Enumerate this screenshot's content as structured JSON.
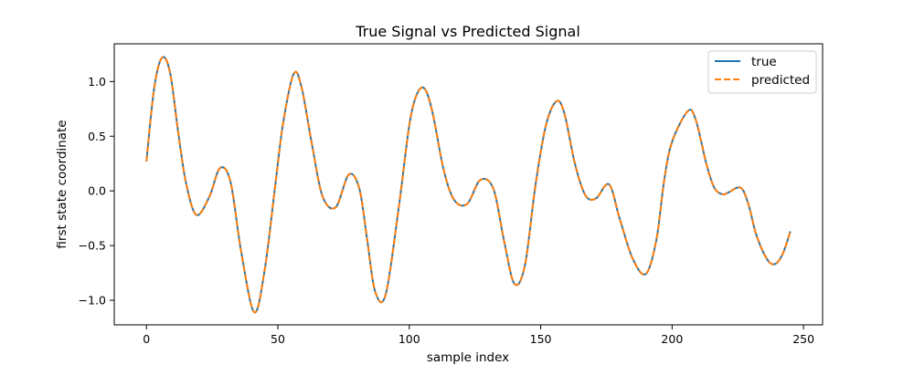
{
  "chart_data": {
    "type": "line",
    "title": "True Signal vs Predicted Signal",
    "xlabel": "sample index",
    "ylabel": "first state coordinate",
    "xlim": [
      -12.25,
      257.25
    ],
    "ylim": [
      -1.225,
      1.345
    ],
    "x_ticks": [
      0,
      50,
      100,
      150,
      200,
      250
    ],
    "y_ticks": [
      -1.0,
      -0.5,
      0.0,
      0.5,
      1.0
    ],
    "x_tick_labels": [
      "0",
      "50",
      "100",
      "150",
      "200",
      "250"
    ],
    "y_tick_labels": [
      "−1.0",
      "−0.5",
      "0.0",
      "0.5",
      "1.0"
    ],
    "grid": false,
    "legend_position": "top-right",
    "series": [
      {
        "name": "true",
        "color": "#1f77b4",
        "style": "solid",
        "x": [
          0,
          3,
          6,
          9,
          12,
          15,
          19,
          24,
          28,
          32,
          36,
          41,
          45,
          49,
          52,
          56,
          59,
          63,
          67,
          72,
          77,
          81,
          84,
          87,
          91,
          96,
          100,
          103,
          106,
          109,
          113,
          117,
          122,
          127,
          132,
          136,
          140,
          144,
          148,
          152,
          156,
          159,
          163,
          167,
          171,
          176,
          180,
          185,
          190,
          194,
          197,
          200,
          206,
          209,
          213,
          216,
          219,
          221,
          226,
          229,
          232,
          236,
          239,
          242,
          245
        ],
        "y": [
          0.27,
          0.95,
          1.22,
          1.08,
          0.55,
          0.08,
          -0.22,
          -0.05,
          0.21,
          0.08,
          -0.55,
          -1.11,
          -0.72,
          0.05,
          0.62,
          1.07,
          0.95,
          0.42,
          -0.05,
          -0.15,
          0.15,
          0.02,
          -0.45,
          -0.92,
          -0.95,
          -0.15,
          0.6,
          0.89,
          0.93,
          0.7,
          0.2,
          -0.08,
          -0.12,
          0.1,
          0.02,
          -0.45,
          -0.85,
          -0.68,
          0.05,
          0.6,
          0.82,
          0.71,
          0.25,
          -0.04,
          -0.07,
          0.06,
          -0.25,
          -0.62,
          -0.76,
          -0.45,
          0.1,
          0.45,
          0.73,
          0.65,
          0.25,
          0.03,
          -0.03,
          -0.02,
          0.03,
          -0.12,
          -0.4,
          -0.62,
          -0.67,
          -0.58,
          -0.37
        ]
      },
      {
        "name": "predicted",
        "color": "#ff7f0e",
        "style": "dashed",
        "x": [
          0,
          3,
          6,
          9,
          12,
          15,
          19,
          24,
          28,
          32,
          36,
          41,
          45,
          49,
          52,
          56,
          59,
          63,
          67,
          72,
          77,
          81,
          84,
          87,
          91,
          96,
          100,
          103,
          106,
          109,
          113,
          117,
          122,
          127,
          132,
          136,
          140,
          144,
          148,
          152,
          156,
          159,
          163,
          167,
          171,
          176,
          180,
          185,
          190,
          194,
          197,
          200,
          206,
          209,
          213,
          216,
          219,
          221,
          226,
          229,
          232,
          236,
          239,
          242,
          245
        ],
        "y": [
          0.27,
          0.95,
          1.22,
          1.08,
          0.55,
          0.08,
          -0.22,
          -0.05,
          0.21,
          0.08,
          -0.55,
          -1.11,
          -0.72,
          0.05,
          0.62,
          1.07,
          0.95,
          0.42,
          -0.05,
          -0.15,
          0.15,
          0.02,
          -0.45,
          -0.92,
          -0.95,
          -0.15,
          0.6,
          0.89,
          0.93,
          0.7,
          0.2,
          -0.08,
          -0.12,
          0.1,
          0.02,
          -0.45,
          -0.85,
          -0.68,
          0.05,
          0.6,
          0.82,
          0.71,
          0.25,
          -0.04,
          -0.07,
          0.06,
          -0.25,
          -0.62,
          -0.76,
          -0.45,
          0.1,
          0.45,
          0.73,
          0.65,
          0.25,
          0.03,
          -0.03,
          -0.02,
          0.03,
          -0.12,
          -0.4,
          -0.62,
          -0.67,
          -0.58,
          -0.37
        ]
      }
    ]
  }
}
